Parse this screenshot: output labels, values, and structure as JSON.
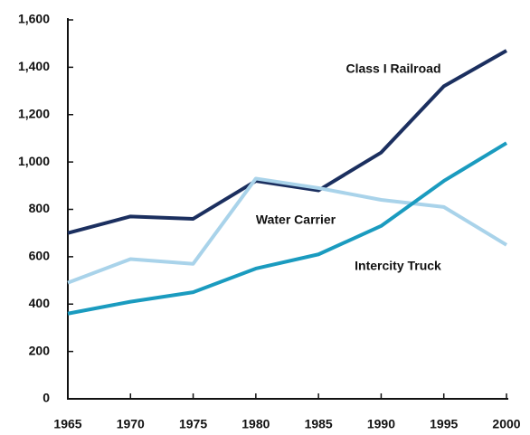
{
  "chart_data": {
    "type": "line",
    "x": [
      1965,
      1970,
      1975,
      1980,
      1985,
      1990,
      1995,
      2000
    ],
    "series": [
      {
        "name": "Class I Railroad",
        "color": "#1b2f5f",
        "values": [
          700,
          770,
          760,
          920,
          880,
          1040,
          1320,
          1470
        ]
      },
      {
        "name": "Water Carrier",
        "color": "#a9d3ea",
        "values": [
          490,
          590,
          570,
          930,
          890,
          840,
          810,
          650
        ]
      },
      {
        "name": "Intercity Truck",
        "color": "#1a9bbf",
        "values": [
          360,
          410,
          450,
          550,
          610,
          730,
          920,
          1080
        ]
      }
    ],
    "xlim": [
      1965,
      2000
    ],
    "xticks": [
      1965,
      1970,
      1975,
      1980,
      1985,
      1990,
      1995,
      2000
    ],
    "ylim": [
      0,
      1600
    ],
    "yticks": [
      0,
      200,
      400,
      600,
      800,
      {
        "value": 1000,
        "label": "1,000"
      },
      {
        "value": 1200,
        "label": "1,200"
      },
      {
        "value": 1400,
        "label": "1,400"
      },
      {
        "value": 1600,
        "label": "1,600"
      }
    ],
    "grid": false
  }
}
